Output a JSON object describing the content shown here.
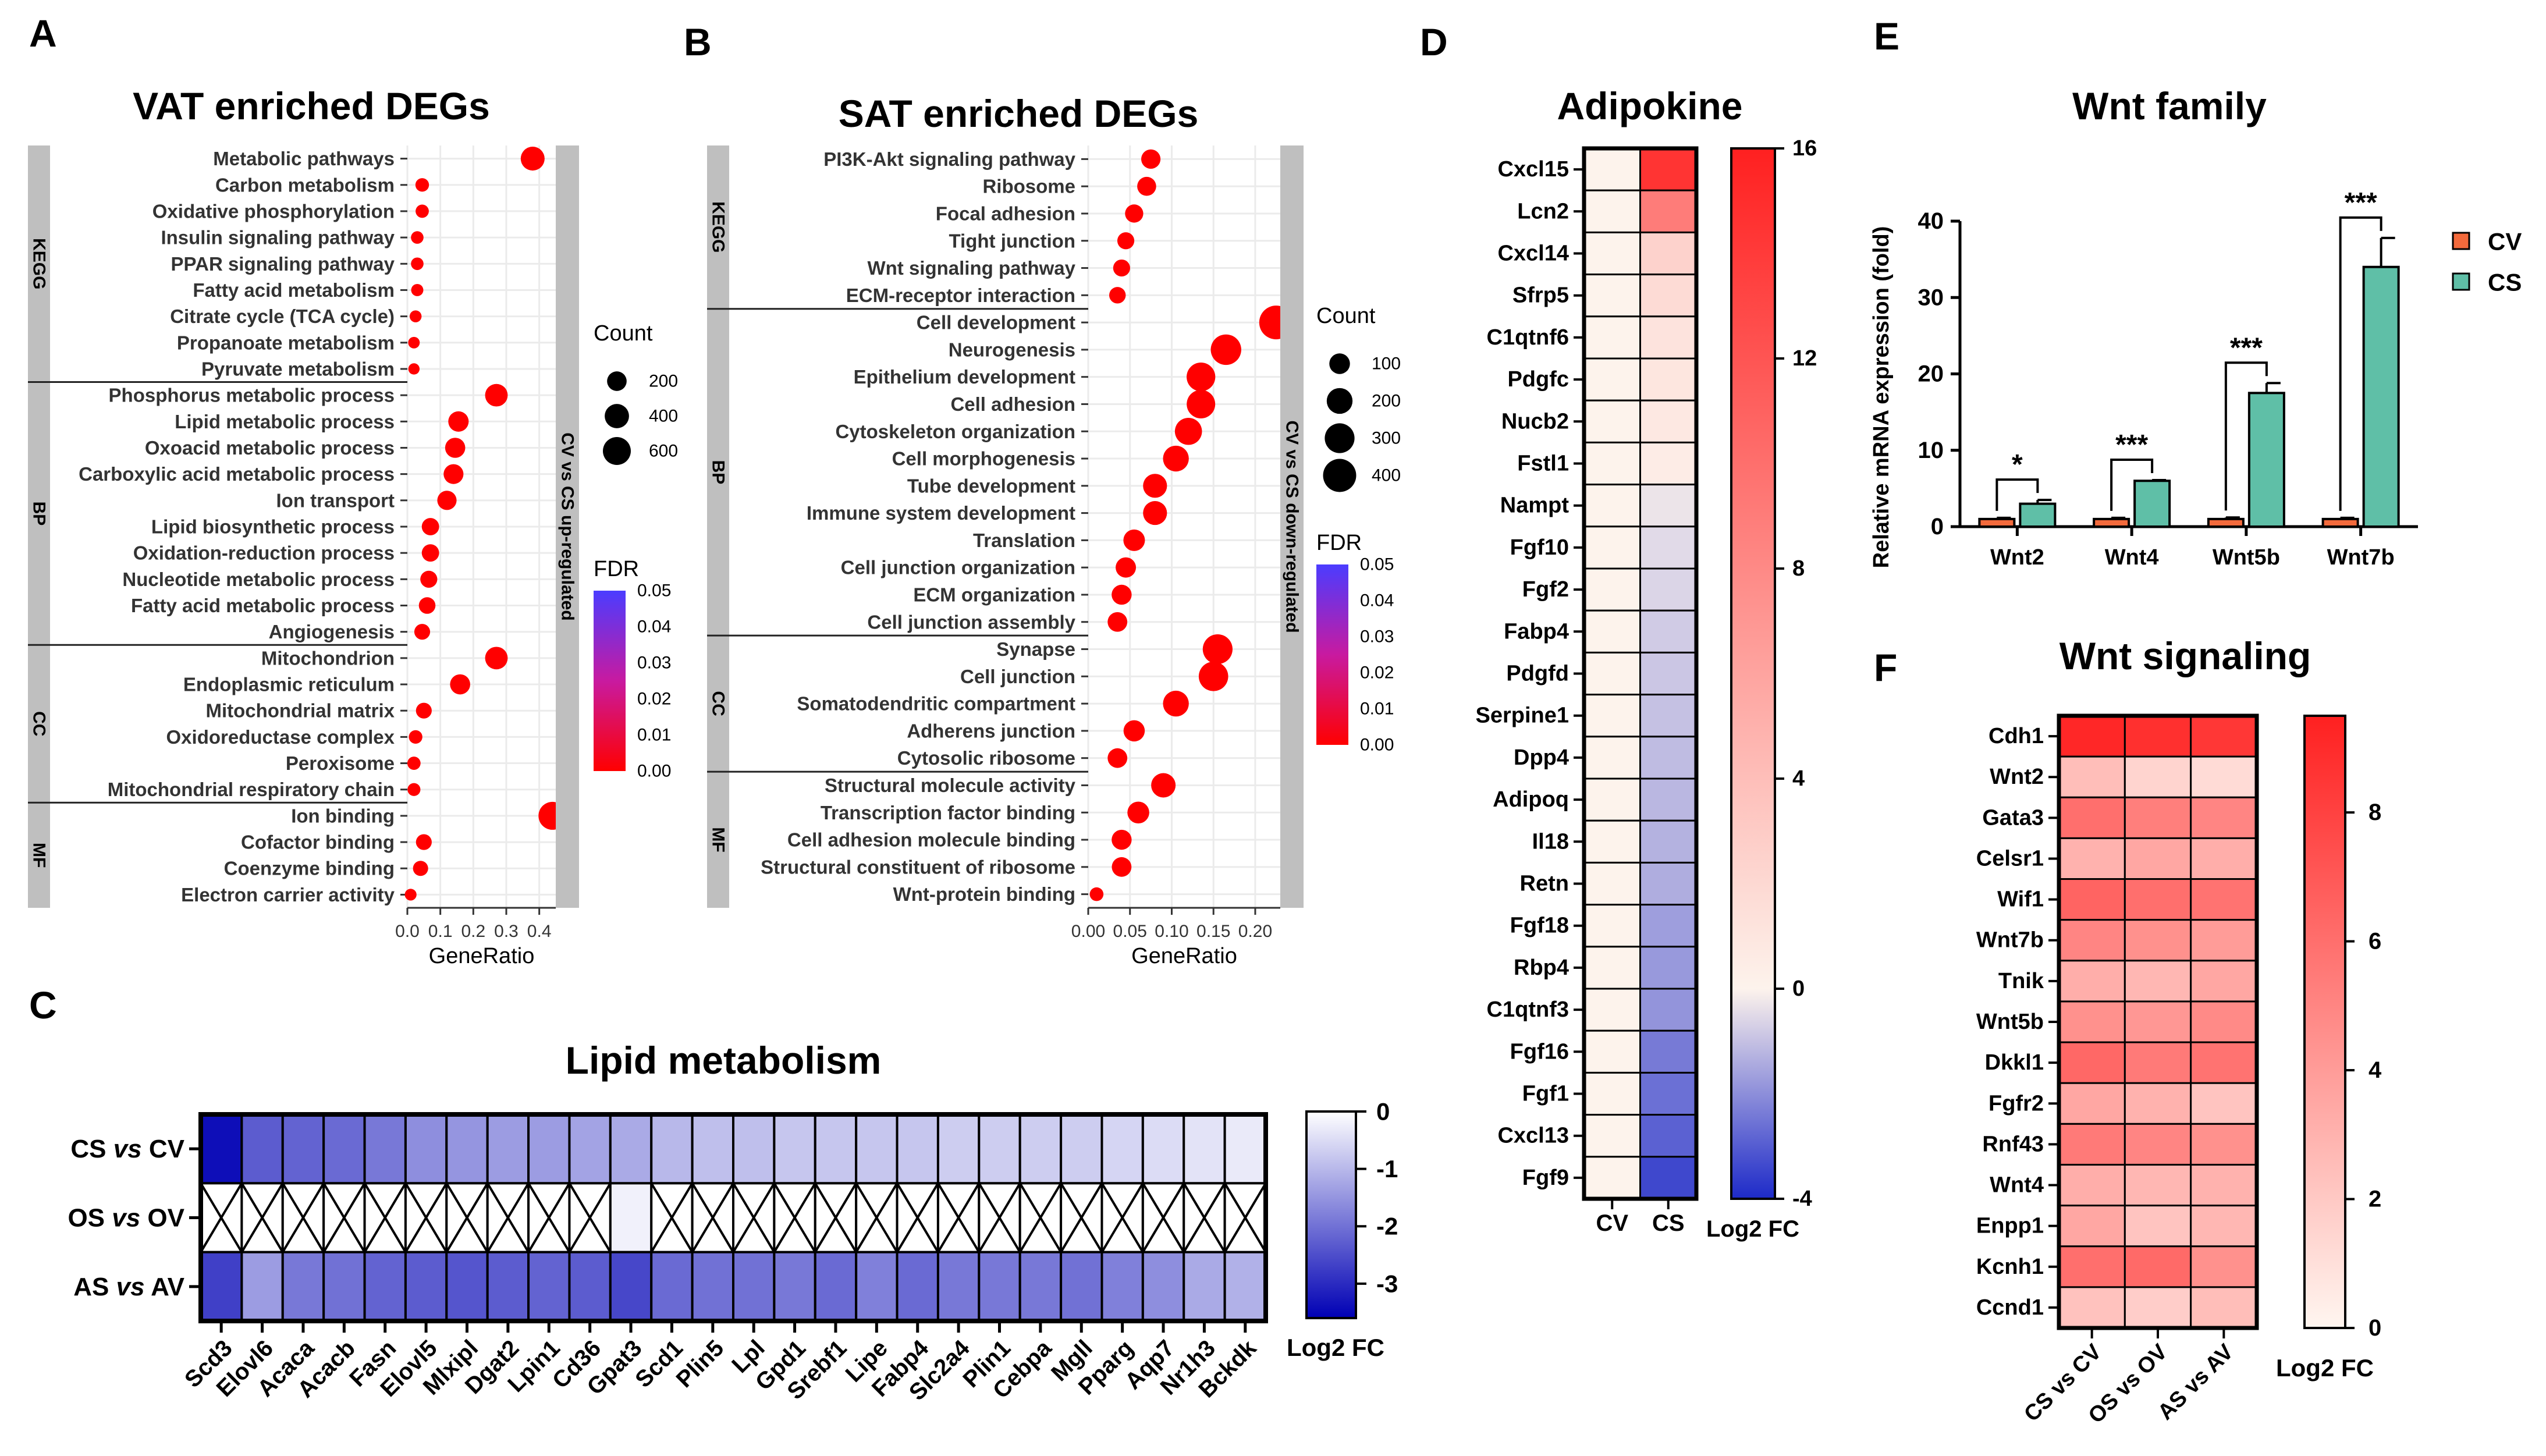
{
  "panel_letters": [
    "A",
    "B",
    "C",
    "D",
    "E",
    "F"
  ],
  "chart_data": [
    {
      "id": "A",
      "type": "scatter",
      "title": "VAT enriched DEGs",
      "xlabel": "GeneRatio",
      "xlim": [
        0,
        0.45
      ],
      "xticks": [
        0.0,
        0.1,
        0.2,
        0.3,
        0.4
      ],
      "xtick_labels": [
        "0.0",
        "0.1",
        "0.2",
        "0.3",
        "0.4"
      ],
      "side_label": "CV vs CS up-regulated",
      "size_legend": {
        "title": "Count",
        "values": [
          200,
          400,
          600
        ]
      },
      "color_legend": {
        "title": "FDR",
        "range": [
          0,
          0.05
        ],
        "ticks": [
          "0.05",
          "0.04",
          "0.03",
          "0.02",
          "0.01",
          "0.00"
        ],
        "low_color": "#ff0000",
        "high_color": "#4b3cff"
      },
      "groups": [
        {
          "name": "KEGG",
          "terms": [
            {
              "term": "Metabolic pathways",
              "ratio": 0.38,
              "count": 380
            },
            {
              "term": "Carbon metabolism",
              "ratio": 0.045,
              "count": 45
            },
            {
              "term": "Oxidative phosphorylation",
              "ratio": 0.045,
              "count": 40
            },
            {
              "term": "Insulin signaling pathway",
              "ratio": 0.03,
              "count": 30
            },
            {
              "term": "PPAR signaling pathway",
              "ratio": 0.03,
              "count": 30
            },
            {
              "term": "Fatty acid metabolism",
              "ratio": 0.03,
              "count": 25
            },
            {
              "term": "Citrate cycle (TCA cycle)",
              "ratio": 0.025,
              "count": 22
            },
            {
              "term": "Propanoate metabolism",
              "ratio": 0.02,
              "count": 18
            },
            {
              "term": "Pyruvate metabolism",
              "ratio": 0.02,
              "count": 15
            }
          ]
        },
        {
          "name": "BP",
          "terms": [
            {
              "term": "Phosphorus metabolic process",
              "ratio": 0.27,
              "count": 320
            },
            {
              "term": "Lipid metabolic process",
              "ratio": 0.155,
              "count": 230
            },
            {
              "term": "Oxoacid metabolic process",
              "ratio": 0.145,
              "count": 220
            },
            {
              "term": "Carboxylic acid metabolic process",
              "ratio": 0.14,
              "count": 210
            },
            {
              "term": "Ion transport",
              "ratio": 0.12,
              "count": 190
            },
            {
              "term": "Lipid biosynthetic process",
              "ratio": 0.07,
              "count": 130
            },
            {
              "term": "Oxidation-reduction process",
              "ratio": 0.07,
              "count": 130
            },
            {
              "term": "Nucleotide metabolic process",
              "ratio": 0.065,
              "count": 120
            },
            {
              "term": "Fatty acid metabolic process",
              "ratio": 0.06,
              "count": 110
            },
            {
              "term": "Angiogenesis",
              "ratio": 0.045,
              "count": 90
            }
          ]
        },
        {
          "name": "CC",
          "terms": [
            {
              "term": "Mitochondrion",
              "ratio": 0.27,
              "count": 320
            },
            {
              "term": "Endoplasmic reticulum",
              "ratio": 0.16,
              "count": 220
            },
            {
              "term": "Mitochondrial matrix",
              "ratio": 0.05,
              "count": 90
            },
            {
              "term": "Oxidoreductase complex",
              "ratio": 0.025,
              "count": 45
            },
            {
              "term": "Peroxisome",
              "ratio": 0.02,
              "count": 40
            },
            {
              "term": "Mitochondrial respiratory chain",
              "ratio": 0.02,
              "count": 35
            }
          ]
        },
        {
          "name": "MF",
          "terms": [
            {
              "term": "Ion binding",
              "ratio": 0.44,
              "count": 600
            },
            {
              "term": "Cofactor binding",
              "ratio": 0.05,
              "count": 90
            },
            {
              "term": "Coenzyme binding",
              "ratio": 0.04,
              "count": 75
            },
            {
              "term": "Electron carrier activity",
              "ratio": 0.01,
              "count": 20
            }
          ]
        }
      ]
    },
    {
      "id": "B",
      "type": "scatter",
      "title": "SAT enriched DEGs",
      "xlabel": "GeneRatio",
      "xlim": [
        0,
        0.23
      ],
      "xticks": [
        0.0,
        0.05,
        0.1,
        0.15,
        0.2
      ],
      "xtick_labels": [
        "0.00",
        "0.05",
        "0.10",
        "0.15",
        "0.20"
      ],
      "side_label": "CV vs CS down-regulated",
      "size_legend": {
        "title": "Count",
        "values": [
          100,
          200,
          300,
          400
        ]
      },
      "color_legend": {
        "title": "FDR",
        "range": [
          0,
          0.05
        ],
        "ticks": [
          "0.05",
          "0.04",
          "0.03",
          "0.02",
          "0.01",
          "0.00"
        ],
        "low_color": "#ff0000",
        "high_color": "#4b3cff"
      },
      "groups": [
        {
          "name": "KEGG",
          "terms": [
            {
              "term": "PI3K-Akt signaling pathway",
              "ratio": 0.075,
              "count": 80
            },
            {
              "term": "Ribosome",
              "ratio": 0.07,
              "count": 75
            },
            {
              "term": "Focal adhesion",
              "ratio": 0.055,
              "count": 65
            },
            {
              "term": "Tight junction",
              "ratio": 0.045,
              "count": 50
            },
            {
              "term": "Wnt signaling pathway",
              "ratio": 0.04,
              "count": 50
            },
            {
              "term": "ECM-receptor interaction",
              "ratio": 0.035,
              "count": 45
            }
          ]
        },
        {
          "name": "BP",
          "terms": [
            {
              "term": "Cell development",
              "ratio": 0.225,
              "count": 420
            },
            {
              "term": "Neurogenesis",
              "ratio": 0.165,
              "count": 320
            },
            {
              "term": "Epithelium development",
              "ratio": 0.135,
              "count": 270
            },
            {
              "term": "Cell adhesion",
              "ratio": 0.135,
              "count": 265
            },
            {
              "term": "Cytoskeleton organization",
              "ratio": 0.12,
              "count": 230
            },
            {
              "term": "Cell morphogenesis",
              "ratio": 0.105,
              "count": 200
            },
            {
              "term": "Tube development",
              "ratio": 0.08,
              "count": 160
            },
            {
              "term": "Immune system development",
              "ratio": 0.08,
              "count": 160
            },
            {
              "term": "Translation",
              "ratio": 0.055,
              "count": 115
            },
            {
              "term": "Cell junction organization",
              "ratio": 0.045,
              "count": 95
            },
            {
              "term": "ECM organization",
              "ratio": 0.04,
              "count": 90
            },
            {
              "term": "Cell junction assembly",
              "ratio": 0.035,
              "count": 85
            }
          ]
        },
        {
          "name": "CC",
          "terms": [
            {
              "term": "Synapse",
              "ratio": 0.155,
              "count": 300
            },
            {
              "term": "Cell junction",
              "ratio": 0.15,
              "count": 290
            },
            {
              "term": "Somatodendritic compartment",
              "ratio": 0.105,
              "count": 200
            },
            {
              "term": "Adherens junction",
              "ratio": 0.055,
              "count": 110
            },
            {
              "term": "Cytosolic ribosome",
              "ratio": 0.035,
              "count": 85
            }
          ]
        },
        {
          "name": "MF",
          "terms": [
            {
              "term": "Structural molecule activity",
              "ratio": 0.09,
              "count": 170
            },
            {
              "term": "Transcription factor binding",
              "ratio": 0.06,
              "count": 120
            },
            {
              "term": "Cell adhesion molecule binding",
              "ratio": 0.04,
              "count": 90
            },
            {
              "term": "Structural constituent of ribosome",
              "ratio": 0.04,
              "count": 85
            },
            {
              "term": "Wnt-protein binding",
              "ratio": 0.01,
              "count": 20
            }
          ]
        }
      ]
    },
    {
      "id": "C",
      "type": "heatmap",
      "title": "Lipid metabolism",
      "rows": [
        {
          "label": "CS vs CV",
          "prefix": "CS ",
          "italic": "vs",
          "suffix": " CV"
        },
        {
          "label": "OS vs OV",
          "prefix": "OS ",
          "italic": "vs",
          "suffix": " OV"
        },
        {
          "label": "AS vs AV",
          "prefix": "AS ",
          "italic": "vs",
          "suffix": " AV"
        }
      ],
      "columns": [
        "Scd3",
        "Elovl6",
        "Acaca",
        "Acacb",
        "Fasn",
        "Elovl5",
        "Mlxipl",
        "Dgat2",
        "Lpin1",
        "Cd36",
        "Gpat3",
        "Scd1",
        "Plin5",
        "Lpl",
        "Gpd1",
        "Srebf1",
        "Lipe",
        "Fabp4",
        "Slc2a4",
        "Plin1",
        "Cebpa",
        "Mgll",
        "Pparg",
        "Aqp7",
        "Nr1h3",
        "Bckdk"
      ],
      "values": [
        [
          -3.4,
          -2.3,
          -2.2,
          -2.1,
          -1.9,
          -1.6,
          -1.5,
          -1.4,
          -1.4,
          -1.3,
          -1.2,
          -1.0,
          -0.9,
          -0.9,
          -0.8,
          -0.8,
          -0.8,
          -0.8,
          -0.7,
          -0.7,
          -0.7,
          -0.7,
          -0.6,
          -0.5,
          -0.4,
          -0.3
        ],
        [
          null,
          null,
          null,
          null,
          null,
          null,
          null,
          null,
          null,
          null,
          -0.2,
          null,
          null,
          null,
          null,
          null,
          null,
          null,
          null,
          null,
          null,
          null,
          null,
          null,
          null,
          null
        ],
        [
          -2.7,
          -1.4,
          -1.9,
          -2.0,
          -2.2,
          -2.3,
          -2.4,
          -2.3,
          -2.2,
          -2.3,
          -2.6,
          -2.1,
          -2.0,
          -2.0,
          -1.9,
          -2.1,
          -1.8,
          -2.1,
          -1.9,
          -1.9,
          -1.9,
          -2.0,
          -1.8,
          -1.6,
          -1.2,
          -1.1
        ]
      ],
      "colorbar": {
        "min": -3.6,
        "max": 0,
        "ticks": [
          0,
          -1,
          -2,
          -3
        ],
        "tick_labels": [
          "0",
          "-1",
          "-2",
          "-3"
        ],
        "label": "Log2 FC"
      },
      "colors": {
        "zero": "#ffffff",
        "low": "#0000b4",
        "missing_fill": "#ffffff"
      }
    },
    {
      "id": "D",
      "type": "heatmap",
      "title": "Adipokine",
      "columns": [
        "CV",
        "CS"
      ],
      "rows": [
        "Cxcl15",
        "Lcn2",
        "Cxcl14",
        "Sfrp5",
        "C1qtnf6",
        "Pdgfc",
        "Nucb2",
        "Fstl1",
        "Nampt",
        "Fgf10",
        "Fgf2",
        "Fabp4",
        "Pdgfd",
        "Serpine1",
        "Dpp4",
        "Adipoq",
        "Il18",
        "Retn",
        "Fgf18",
        "Rbp4",
        "C1qtnf3",
        "Fgf16",
        "Fgf1",
        "Cxcl13",
        "Fgf9"
      ],
      "values": [
        [
          0,
          14.5
        ],
        [
          0,
          9
        ],
        [
          0,
          2.5
        ],
        [
          0,
          1.8
        ],
        [
          0,
          1.2
        ],
        [
          0,
          1.0
        ],
        [
          0,
          0.8
        ],
        [
          0,
          0.5
        ],
        [
          0,
          -0.3
        ],
        [
          0,
          -0.5
        ],
        [
          0,
          -0.6
        ],
        [
          0,
          -0.8
        ],
        [
          0,
          -0.9
        ],
        [
          0,
          -1.0
        ],
        [
          0,
          -1.1
        ],
        [
          0,
          -1.2
        ],
        [
          0,
          -1.3
        ],
        [
          0,
          -1.4
        ],
        [
          0,
          -1.7
        ],
        [
          0,
          -1.8
        ],
        [
          0,
          -1.9
        ],
        [
          0,
          -2.4
        ],
        [
          0,
          -2.6
        ],
        [
          0,
          -2.9
        ],
        [
          0,
          -3.4
        ]
      ],
      "colorbar": {
        "min": -4,
        "max": 16,
        "ticks": [
          16,
          12,
          8,
          4,
          0,
          -4
        ],
        "tick_labels": [
          "16",
          "12",
          "8",
          "4",
          "0",
          "-4"
        ],
        "label": "Log2 FC"
      },
      "colors": {
        "zero": "#fdf3ec",
        "high": "#ff2020",
        "low": "#1d2ac8"
      }
    },
    {
      "id": "E",
      "type": "bar",
      "title": "Wnt family",
      "ylabel": "Relative mRNA expression (fold)",
      "categories": [
        "Wnt2",
        "Wnt4",
        "Wnt5b",
        "Wnt7b"
      ],
      "ylim": [
        0,
        40
      ],
      "yticks": [
        0,
        10,
        20,
        30,
        40
      ],
      "ytick_labels": [
        "0",
        "10",
        "20",
        "30",
        "40"
      ],
      "series": [
        {
          "name": "CV",
          "color": "#f36a3c",
          "values": [
            1.0,
            1.0,
            1.0,
            1.0
          ],
          "errors": [
            0.15,
            0.15,
            0.2,
            0.15
          ]
        },
        {
          "name": "CS",
          "color": "#5fbfa7",
          "values": [
            3.0,
            6.0,
            17.5,
            34.0
          ],
          "errors": [
            0.5,
            0.1,
            1.3,
            3.8
          ]
        }
      ],
      "significance": [
        "*",
        "***",
        "***",
        "***"
      ]
    },
    {
      "id": "F",
      "type": "heatmap",
      "title": "Wnt signaling",
      "columns": [
        "CS vs CV",
        "OS vs OV",
        "AS vs AV"
      ],
      "rows": [
        "Cdh1",
        "Wnt2",
        "Gata3",
        "Celsr1",
        "Wif1",
        "Wnt7b",
        "Tnik",
        "Wnt5b",
        "Dkkl1",
        "Fgfr2",
        "Rnf43",
        "Wnt4",
        "Enpp1",
        "Kcnh1",
        "Ccnd1"
      ],
      "values": [
        [
          9.2,
          8.8,
          8.5
        ],
        [
          2.5,
          1.5,
          1.2
        ],
        [
          6.0,
          5.3,
          5.0
        ],
        [
          3.0,
          3.5,
          3.2
        ],
        [
          6.5,
          6.0,
          5.8
        ],
        [
          5.0,
          4.5,
          4.0
        ],
        [
          3.2,
          2.8,
          3.5
        ],
        [
          4.5,
          4.2,
          4.8
        ],
        [
          6.3,
          5.5,
          5.8
        ],
        [
          3.5,
          3.0,
          2.2
        ],
        [
          5.5,
          5.0,
          4.5
        ],
        [
          3.2,
          2.8,
          3.0
        ],
        [
          3.5,
          2.2,
          2.8
        ],
        [
          6.0,
          6.2,
          4.5
        ],
        [
          2.3,
          1.8,
          2.5
        ]
      ],
      "colorbar": {
        "min": 0,
        "max": 9.5,
        "ticks": [
          8,
          6,
          4,
          2,
          0
        ],
        "tick_labels": [
          "8",
          "6",
          "4",
          "2",
          "0"
        ],
        "label": "Log2 FC"
      },
      "colors": {
        "zero": "#fff6f0",
        "high": "#ff2020"
      }
    }
  ]
}
